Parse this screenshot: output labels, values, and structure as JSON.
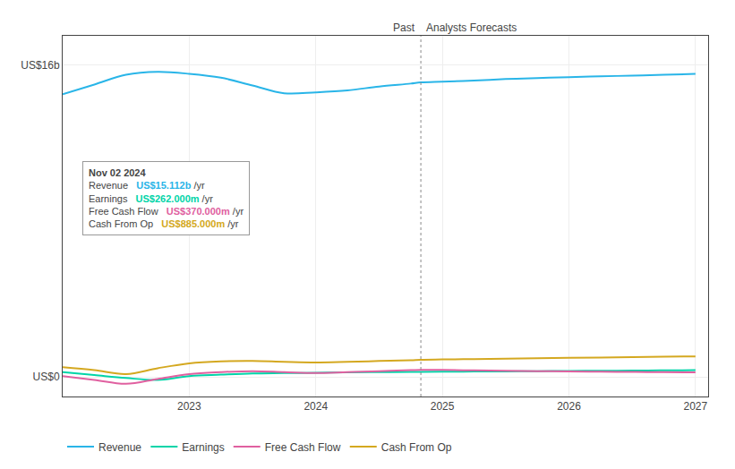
{
  "chart_data": {
    "type": "line",
    "x": [
      2022.0,
      2022.25,
      2022.5,
      2022.75,
      2023.0,
      2023.25,
      2023.5,
      2023.75,
      2024.0,
      2024.25,
      2024.5,
      2024.75,
      2024.83,
      2025.0,
      2025.25,
      2025.5,
      2025.75,
      2026.0,
      2026.25,
      2026.5,
      2026.75,
      2027.0
    ],
    "series": [
      {
        "name": "Revenue",
        "color": "#29b5e8",
        "values": [
          14.5,
          15.0,
          15.5,
          15.65,
          15.55,
          15.35,
          14.95,
          14.55,
          14.6,
          14.7,
          14.9,
          15.05,
          15.112,
          15.15,
          15.2,
          15.28,
          15.33,
          15.38,
          15.42,
          15.46,
          15.5,
          15.55
        ]
      },
      {
        "name": "Earnings",
        "color": "#00d4a8",
        "values": [
          0.25,
          0.1,
          -0.05,
          -0.15,
          0.05,
          0.12,
          0.18,
          0.2,
          0.22,
          0.24,
          0.25,
          0.26,
          0.262,
          0.27,
          0.28,
          0.29,
          0.3,
          0.31,
          0.32,
          0.33,
          0.34,
          0.35
        ]
      },
      {
        "name": "Free Cash Flow",
        "color": "#e060a0",
        "values": [
          0.05,
          -0.15,
          -0.35,
          -0.1,
          0.15,
          0.25,
          0.3,
          0.25,
          0.2,
          0.25,
          0.3,
          0.35,
          0.37,
          0.36,
          0.34,
          0.32,
          0.3,
          0.28,
          0.27,
          0.26,
          0.25,
          0.24
        ]
      },
      {
        "name": "Cash From Op",
        "color": "#d4a820",
        "values": [
          0.5,
          0.35,
          0.15,
          0.45,
          0.7,
          0.8,
          0.82,
          0.78,
          0.75,
          0.78,
          0.82,
          0.86,
          0.885,
          0.9,
          0.92,
          0.94,
          0.96,
          0.98,
          1.0,
          1.02,
          1.04,
          1.06
        ]
      }
    ],
    "xlim": [
      2022.0,
      2027.1
    ],
    "xticks": [
      2023,
      2024,
      2025,
      2026,
      2027
    ],
    "ylim": [
      -1.0,
      17.5
    ],
    "yticks": [
      {
        "value": 0,
        "label": "US$0"
      },
      {
        "value": 16,
        "label": "US$16b"
      }
    ],
    "grid": true,
    "legend": "bottom",
    "divider": 2024.83,
    "annotations": [
      "Past",
      "Analysts Forecasts"
    ],
    "tooltip": {
      "title": "Nov 02 2024",
      "rows": [
        {
          "label": "Revenue",
          "value": "US$15.112b",
          "unit": " /yr",
          "color": "#29b5e8"
        },
        {
          "label": "Earnings",
          "value": "US$262.000m",
          "unit": " /yr",
          "color": "#00d4a8"
        },
        {
          "label": "Free Cash Flow",
          "value": "US$370.000m",
          "unit": " /yr",
          "color": "#e060a0"
        },
        {
          "label": "Cash From Op",
          "value": "US$885.000m",
          "unit": " /yr",
          "color": "#d4a820"
        }
      ]
    }
  }
}
